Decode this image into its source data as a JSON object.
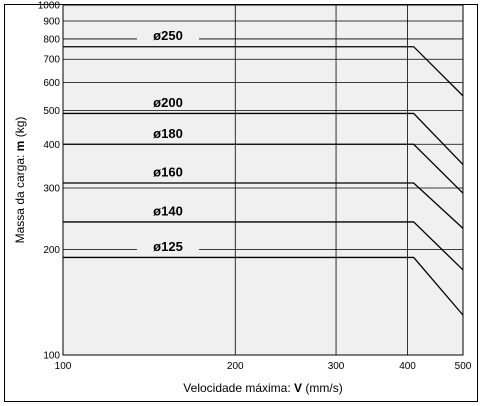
{
  "chart_data": {
    "type": "line",
    "xlabel_prefix": "Velocidade máxima: ",
    "xlabel_var": "V",
    "xlabel_unit": " (mm/s)",
    "ylabel_prefix": "Massa da carga: ",
    "ylabel_var": "m",
    "ylabel_unit": " (kg)",
    "x_scale": "log",
    "y_scale": "log",
    "xlim": [
      100,
      500
    ],
    "ylim": [
      100,
      1000
    ],
    "x_ticks": [
      100,
      200,
      300,
      400,
      500
    ],
    "y_ticks": [
      100,
      200,
      300,
      400,
      500,
      600,
      700,
      800,
      900,
      1000
    ],
    "grid": true,
    "series": [
      {
        "name": "ø250",
        "points": [
          [
            100,
            760
          ],
          [
            410,
            760
          ],
          [
            500,
            550
          ]
        ]
      },
      {
        "name": "ø200",
        "points": [
          [
            100,
            490
          ],
          [
            410,
            490
          ],
          [
            500,
            350
          ]
        ]
      },
      {
        "name": "ø180",
        "points": [
          [
            100,
            400
          ],
          [
            410,
            400
          ],
          [
            500,
            290
          ]
        ]
      },
      {
        "name": "ø160",
        "points": [
          [
            100,
            310
          ],
          [
            410,
            310
          ],
          [
            500,
            230
          ]
        ]
      },
      {
        "name": "ø140",
        "points": [
          [
            100,
            240
          ],
          [
            410,
            240
          ],
          [
            500,
            175
          ]
        ]
      },
      {
        "name": "ø125",
        "points": [
          [
            100,
            190
          ],
          [
            410,
            190
          ],
          [
            500,
            130
          ]
        ]
      }
    ]
  }
}
